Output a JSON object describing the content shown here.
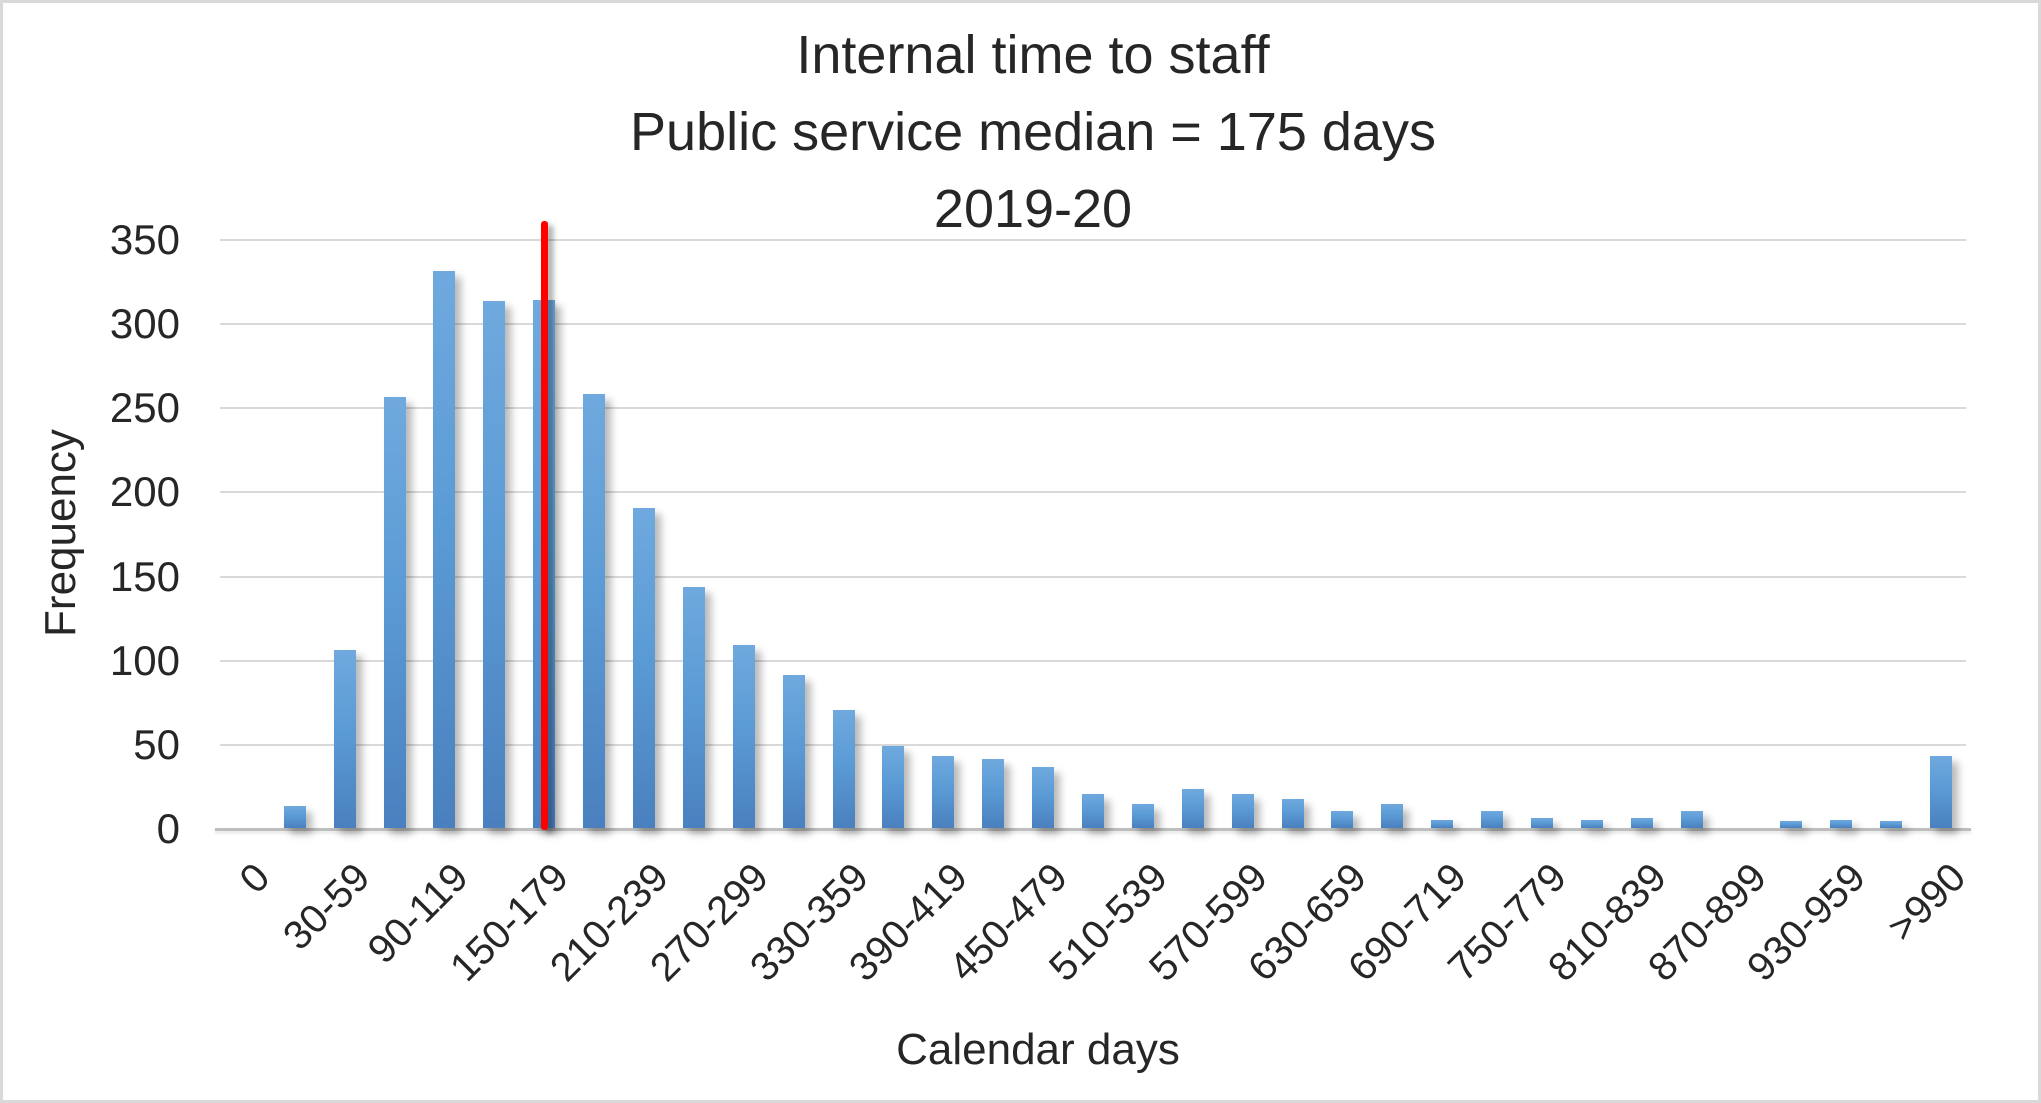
{
  "title": {
    "line1": "Internal time to staff",
    "line2": "Public service median = 175 days",
    "line3": "2019-20"
  },
  "y_axis": {
    "title": "Frequency",
    "ticks": [
      0,
      50,
      100,
      150,
      200,
      250,
      300,
      350
    ],
    "max": 350
  },
  "x_axis": {
    "title": "Calendar days"
  },
  "median_line": {
    "bin_label": "150-179",
    "value_days": 175,
    "color": "#ff0000"
  },
  "colors": {
    "bar_top": "#6fa9de",
    "bar_mid": "#5b9bd5",
    "bar_bottom": "#4a80bf",
    "gridline": "#d9d9d9",
    "axis_line": "#bebebe",
    "median_line": "#ff0000",
    "text": "#262626",
    "border": "#d9d9d9",
    "background": "#ffffff"
  },
  "chart_data": {
    "type": "bar",
    "title": "Internal time to staff",
    "subtitle": "Public service median = 175 days",
    "period": "2019-20",
    "xlabel": "Calendar days",
    "ylabel": "Frequency",
    "ylim": [
      0,
      350
    ],
    "gridline_step": 50,
    "grid": "on",
    "legend": "none",
    "tick_labels": [
      "0",
      "30-59",
      "90-119",
      "150-179",
      "210-239",
      "270-299",
      "330-359",
      "390-419",
      "450-479",
      "510-539",
      "570-599",
      "630-659",
      "690-719",
      "750-779",
      "810-839",
      "870-899",
      "930-959",
      ">990"
    ],
    "bins": [
      {
        "label": "0",
        "value": 0
      },
      {
        "label": "",
        "value": 13
      },
      {
        "label": "30-59",
        "value": 106
      },
      {
        "label": "",
        "value": 256
      },
      {
        "label": "90-119",
        "value": 331
      },
      {
        "label": "",
        "value": 313
      },
      {
        "label": "150-179",
        "value": 314
      },
      {
        "label": "",
        "value": 258
      },
      {
        "label": "210-239",
        "value": 190
      },
      {
        "label": "",
        "value": 143
      },
      {
        "label": "270-299",
        "value": 109
      },
      {
        "label": "",
        "value": 91
      },
      {
        "label": "330-359",
        "value": 70
      },
      {
        "label": "",
        "value": 49
      },
      {
        "label": "390-419",
        "value": 43
      },
      {
        "label": "",
        "value": 41
      },
      {
        "label": "450-479",
        "value": 36
      },
      {
        "label": "",
        "value": 20
      },
      {
        "label": "510-539",
        "value": 14
      },
      {
        "label": "",
        "value": 23
      },
      {
        "label": "570-599",
        "value": 20
      },
      {
        "label": "",
        "value": 17
      },
      {
        "label": "630-659",
        "value": 10
      },
      {
        "label": "",
        "value": 14
      },
      {
        "label": "690-719",
        "value": 5
      },
      {
        "label": "",
        "value": 10
      },
      {
        "label": "750-779",
        "value": 6
      },
      {
        "label": "",
        "value": 5
      },
      {
        "label": "810-839",
        "value": 6
      },
      {
        "label": "",
        "value": 10
      },
      {
        "label": "870-899",
        "value": 0
      },
      {
        "label": "",
        "value": 4
      },
      {
        "label": "930-959",
        "value": 5
      },
      {
        "label": "",
        "value": 4
      },
      {
        "label": ">990",
        "value": 43
      }
    ],
    "median_marker": {
      "at_bin": "150-179",
      "value": 175
    }
  }
}
